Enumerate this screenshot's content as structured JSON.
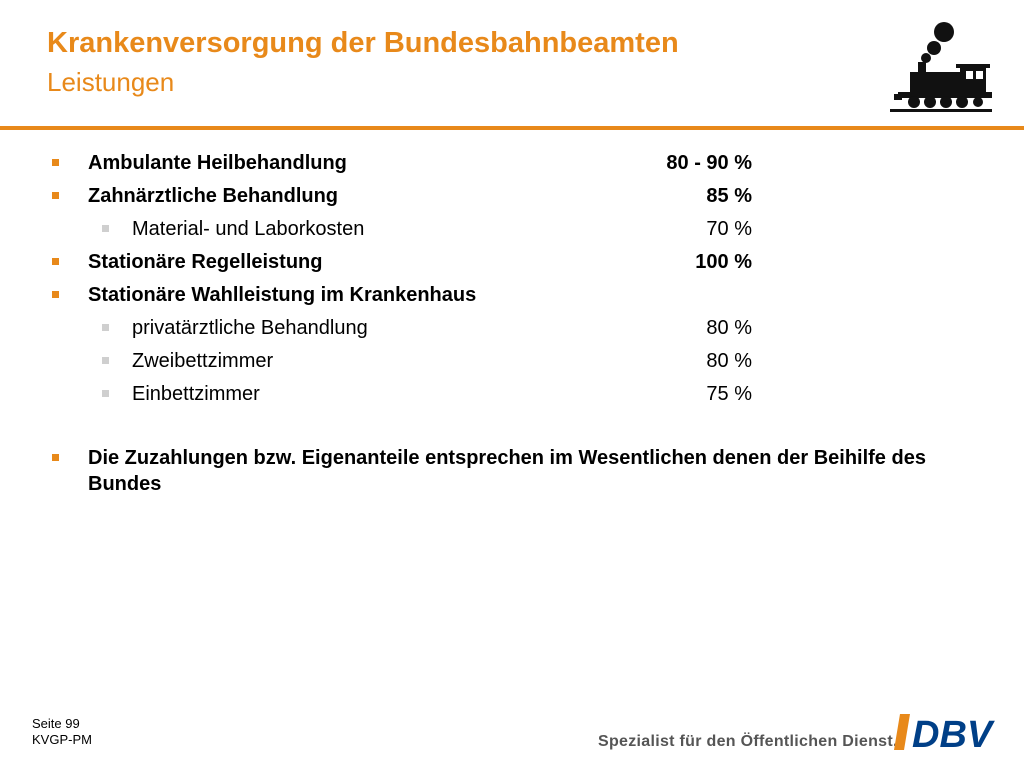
{
  "header": {
    "title": "Krankenversorgung der Bundesbahnbeamten",
    "subtitle": "Leistungen"
  },
  "items": [
    {
      "label": "Ambulante Heilbehandlung",
      "value": "80 - 90 %",
      "level": 1
    },
    {
      "label": "Zahnärztliche Behandlung",
      "value": "85 %",
      "level": 1
    },
    {
      "label": "Material- und Laborkosten",
      "value": "70 %",
      "level": 2
    },
    {
      "label": "Stationäre Regelleistung",
      "value": "100 %",
      "level": 1
    },
    {
      "label": "Stationäre Wahlleistung im Krankenhaus",
      "value": "",
      "level": 1
    },
    {
      "label": "privatärztliche Behandlung",
      "value": "80 %",
      "level": 2
    },
    {
      "label": "Zweibettzimmer",
      "value": "80 %",
      "level": 2
    },
    {
      "label": "Einbettzimmer",
      "value": "75 %",
      "level": 2
    }
  ],
  "note": "Die Zuzahlungen bzw. Eigenanteile entsprechen im Wesentlichen denen der Beihilfe des Bundes",
  "footer": {
    "page": "Seite 99",
    "code": "KVGP-PM",
    "tagline": "Spezialist für den Öffentlichen Dienst.",
    "logo_text": "DBV"
  },
  "colors": {
    "accent": "#E8891A",
    "sub_bullet": "#cfcfcf",
    "logo_blue": "#003F87"
  },
  "icons": {
    "header": "steam-locomotive-icon"
  }
}
